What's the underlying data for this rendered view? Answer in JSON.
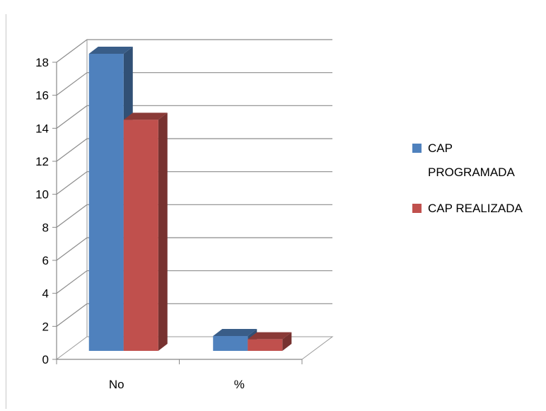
{
  "chart_data": {
    "type": "bar",
    "categories": [
      "No",
      "%"
    ],
    "series": [
      {
        "name": "CAP PROGRAMADA",
        "values": [
          18,
          0.9
        ],
        "color": "#4F81BD"
      },
      {
        "name": "CAP REALIZADA",
        "values": [
          14,
          0.7
        ],
        "color": "#C0504D"
      }
    ],
    "ylim": [
      0,
      18
    ],
    "yticks": [
      "0",
      "2",
      "4",
      "6",
      "8",
      "10",
      "12",
      "14",
      "16",
      "18"
    ],
    "legend_placement": "right",
    "grid": true,
    "style": "3d-clustered-column"
  },
  "legend": {
    "items": [
      {
        "lines": [
          "CAP",
          "PROGRAMADA"
        ],
        "color": "#4F81BD"
      },
      {
        "lines": [
          "CAP REALIZADA"
        ],
        "color": "#C0504D"
      }
    ]
  }
}
